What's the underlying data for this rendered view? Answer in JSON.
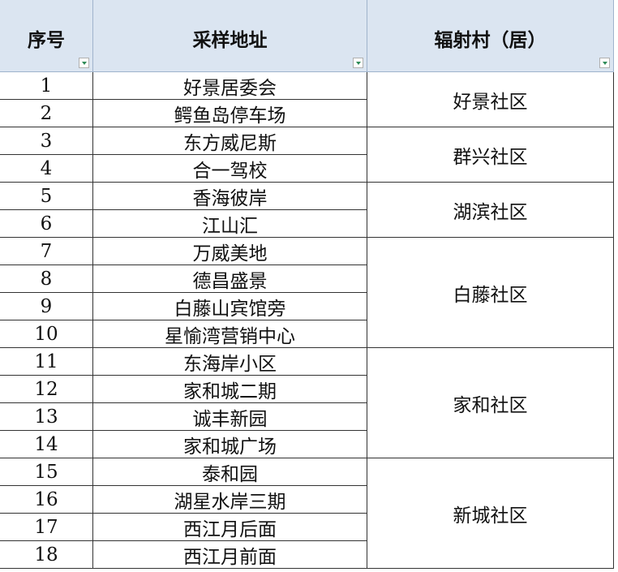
{
  "table": {
    "header": [
      "序号",
      "采样地址",
      "辐射村（居）"
    ],
    "groups": [
      {
        "name": "好景社区",
        "rows": [
          [
            1,
            "好景居委会"
          ],
          [
            2,
            "鳄鱼岛停车场"
          ]
        ]
      },
      {
        "name": "群兴社区",
        "rows": [
          [
            3,
            "东方威尼斯"
          ],
          [
            4,
            "合一驾校"
          ]
        ]
      },
      {
        "name": "湖滨社区",
        "rows": [
          [
            5,
            "香海彼岸"
          ],
          [
            6,
            "江山汇"
          ]
        ]
      },
      {
        "name": "白藤社区",
        "rows": [
          [
            7,
            "万威美地"
          ],
          [
            8,
            "德昌盛景"
          ],
          [
            9,
            "白藤山宾馆旁"
          ],
          [
            10,
            "星愉湾营销中心"
          ]
        ]
      },
      {
        "name": "家和社区",
        "rows": [
          [
            11,
            "东海岸小区"
          ],
          [
            12,
            "家和城二期"
          ],
          [
            13,
            "诚丰新园"
          ],
          [
            14,
            "家和城广场"
          ]
        ]
      },
      {
        "name": "新城社区",
        "rows": [
          [
            15,
            "泰和园"
          ],
          [
            16,
            "湖星水岸三期"
          ],
          [
            17,
            "西江月后面"
          ],
          [
            18,
            "西江月前面"
          ]
        ]
      }
    ]
  }
}
